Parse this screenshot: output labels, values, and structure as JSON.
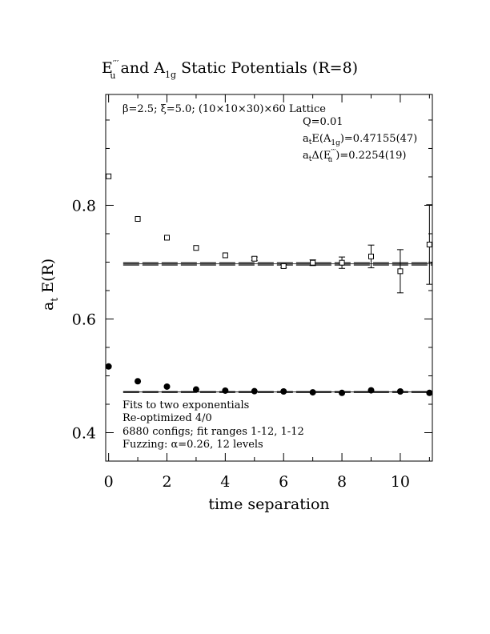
{
  "chart_data": {
    "type": "scatter",
    "title": {
      "part1": "E",
      "part1_sub": "u",
      "part1_sup": "′′′",
      "mid": " and A",
      "part2_sub": "1g",
      "part3": " Static Potentials (R=8)"
    },
    "xlabel": "time separation",
    "ylabel": {
      "base": "a",
      "sub": "t",
      "rest": " E(R)"
    },
    "xlim": [
      -0.1,
      11.1
    ],
    "ylim": [
      0.35,
      0.995
    ],
    "x_ticks": [
      "0",
      "2",
      "4",
      "6",
      "8",
      "10"
    ],
    "y_ticks": [
      "0.4",
      "0.6",
      "0.8"
    ],
    "lattice_info": "β=2.5; ξ=5.0; (10×10×30)×60 Lattice",
    "fit_info": {
      "q": "Q=0.01",
      "energy_label": {
        "pre": "a",
        "sub1": "t",
        "mid": "E(A",
        "sub2": "1g",
        "post": ")=0.47155(47)"
      },
      "delta_label": {
        "pre": "a",
        "sub1": "t",
        "mid": "Δ(E",
        "sup": "′′′",
        "sub2": "u",
        "post": ")=0.2254(19)"
      }
    },
    "notes": [
      "Fits to two exponentials",
      "Re-optimized 4/0",
      "6880 configs; fit ranges 1-12, 1-12",
      "Fuzzing: α=0.26, 12 levels"
    ],
    "series": [
      {
        "marker": "open-square",
        "points": [
          {
            "x": 0,
            "y": 0.851,
            "err": 0.002
          },
          {
            "x": 1,
            "y": 0.776,
            "err": 0.002
          },
          {
            "x": 2,
            "y": 0.743,
            "err": 0.002
          },
          {
            "x": 3,
            "y": 0.725,
            "err": 0.002
          },
          {
            "x": 4,
            "y": 0.712,
            "err": 0.002
          },
          {
            "x": 5,
            "y": 0.706,
            "err": 0.003
          },
          {
            "x": 6,
            "y": 0.693,
            "err": 0.003
          },
          {
            "x": 7,
            "y": 0.699,
            "err": 0.005
          },
          {
            "x": 8,
            "y": 0.699,
            "err": 0.01
          },
          {
            "x": 9,
            "y": 0.71,
            "err": 0.02
          },
          {
            "x": 10,
            "y": 0.684,
            "err": 0.038
          },
          {
            "x": 11,
            "y": 0.731,
            "err": 0.07
          }
        ],
        "fit": {
          "y": 0.697,
          "band": 0.002,
          "x_range": [
            0.5,
            11.1
          ]
        }
      },
      {
        "marker": "filled-circle",
        "points": [
          {
            "x": 0,
            "y": 0.5165
          },
          {
            "x": 1,
            "y": 0.4905
          },
          {
            "x": 2,
            "y": 0.481
          },
          {
            "x": 3,
            "y": 0.476
          },
          {
            "x": 4,
            "y": 0.474
          },
          {
            "x": 5,
            "y": 0.473
          },
          {
            "x": 6,
            "y": 0.4725
          },
          {
            "x": 7,
            "y": 0.471
          },
          {
            "x": 8,
            "y": 0.47
          },
          {
            "x": 9,
            "y": 0.4745
          },
          {
            "x": 10,
            "y": 0.4725
          },
          {
            "x": 11,
            "y": 0.47
          }
        ],
        "fit": {
          "y": 0.47155,
          "band": 0.0007,
          "x_range": [
            0.5,
            11.1
          ]
        }
      }
    ]
  }
}
